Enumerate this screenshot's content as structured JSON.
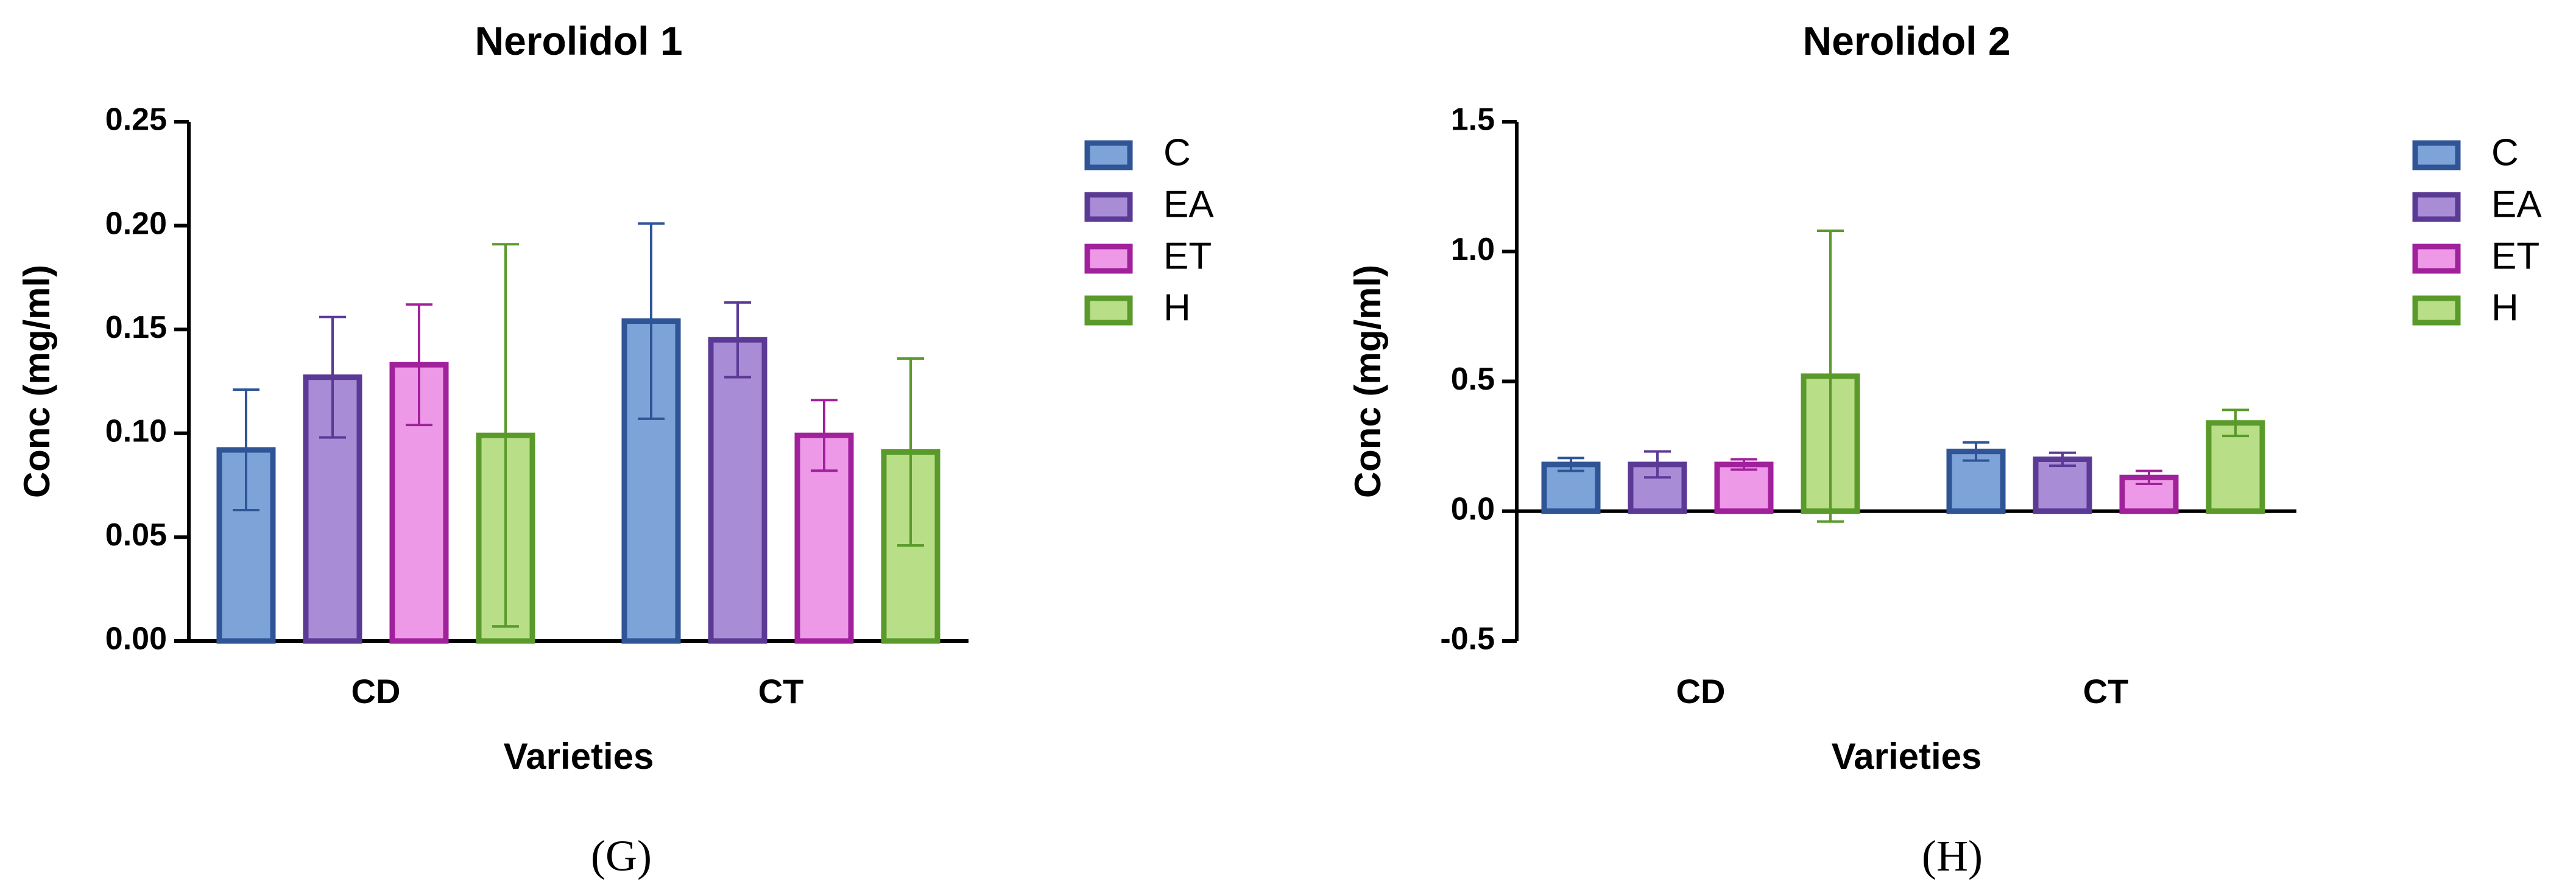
{
  "chart_data": [
    {
      "type": "bar",
      "title": "Nerolidol 1",
      "panel_label": "(G)",
      "xlabel": "Varieties",
      "ylabel": "Conc (mg/ml)",
      "ylim": [
        0,
        0.25
      ],
      "yticks": [
        "0.00",
        "0.05",
        "0.10",
        "0.15",
        "0.20",
        "0.25"
      ],
      "ytick_values": [
        0,
        0.05,
        0.1,
        0.15,
        0.2,
        0.25
      ],
      "categories": [
        "CD",
        "CT"
      ],
      "series": [
        {
          "name": "C",
          "values": [
            0.092,
            0.154
          ],
          "errors": [
            0.029,
            0.047
          ]
        },
        {
          "name": "EA",
          "values": [
            0.127,
            0.145
          ],
          "errors": [
            0.029,
            0.018
          ]
        },
        {
          "name": "ET",
          "values": [
            0.133,
            0.099
          ],
          "errors": [
            0.029,
            0.017
          ]
        },
        {
          "name": "H",
          "values": [
            0.099,
            0.091
          ],
          "errors": [
            0.092,
            0.045
          ]
        }
      ]
    },
    {
      "type": "bar",
      "title": "Nerolidol 2",
      "panel_label": "(H)",
      "xlabel": "Varieties",
      "ylabel": "Conc (mg/ml)",
      "ylim": [
        -0.5,
        1.5
      ],
      "yticks": [
        "-0.5",
        "0.0",
        "0.5",
        "1.0",
        "1.5"
      ],
      "ytick_values": [
        -0.5,
        0.0,
        0.5,
        1.0,
        1.5
      ],
      "categories": [
        "CD",
        "CT"
      ],
      "series": [
        {
          "name": "C",
          "values": [
            0.18,
            0.23
          ],
          "errors": [
            0.025,
            0.035
          ]
        },
        {
          "name": "EA",
          "values": [
            0.18,
            0.2
          ],
          "errors": [
            0.05,
            0.025
          ]
        },
        {
          "name": "ET",
          "values": [
            0.18,
            0.13
          ],
          "errors": [
            0.02,
            0.025
          ]
        },
        {
          "name": "H",
          "values": [
            0.52,
            0.34
          ],
          "errors": [
            0.56,
            0.05
          ]
        }
      ]
    }
  ],
  "style": {
    "series_colors": [
      {
        "fill": "#7EA3D8",
        "stroke": "#2F5596"
      },
      {
        "fill": "#A98CD6",
        "stroke": "#5B3A96"
      },
      {
        "fill": "#EE99E8",
        "stroke": "#A0219B"
      },
      {
        "fill": "#B9DE88",
        "stroke": "#5A9A2B"
      }
    ]
  }
}
